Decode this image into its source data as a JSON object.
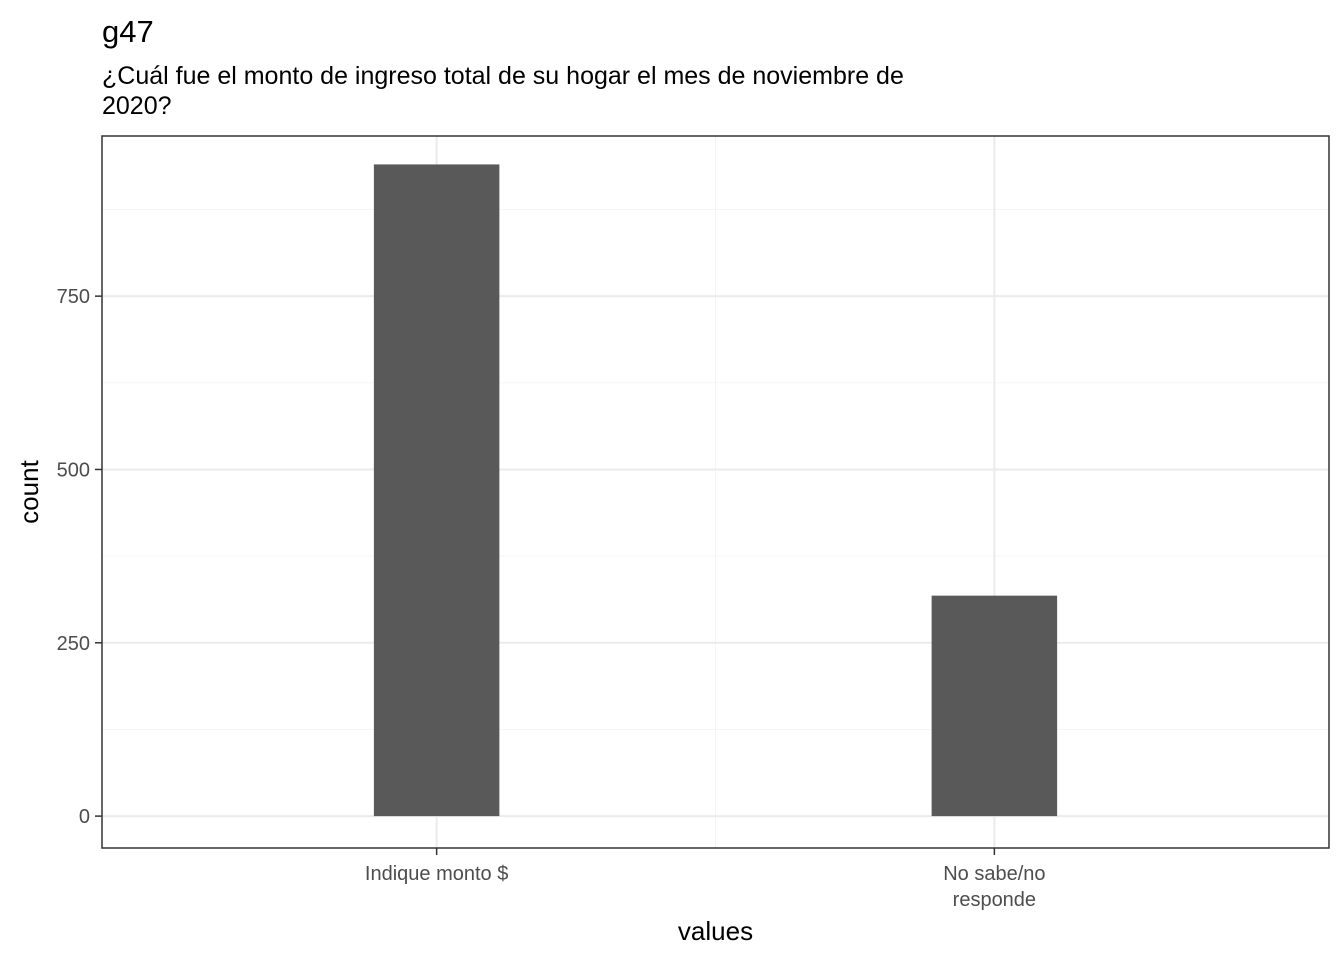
{
  "chart_data": {
    "type": "bar",
    "title": "g47",
    "subtitle_lines": [
      "¿Cuál fue el monto de ingreso total de su hogar el mes de noviembre de",
      "2020?"
    ],
    "xlabel": "values",
    "ylabel": "count",
    "categories": [
      [
        "Indique monto $"
      ],
      [
        "No sabe/no",
        "responde"
      ]
    ],
    "values": [
      940,
      318
    ],
    "ylim": [
      -46,
      981
    ],
    "y_ticks": [
      0,
      250,
      500,
      750
    ],
    "y_tick_labels": [
      "0",
      "250",
      "500",
      "750"
    ],
    "x_range": [
      0.4,
      2.6
    ],
    "grid": true,
    "bar_color": "#595959",
    "panel_border_color": "#333333",
    "grid_major_color": "#ebebeb",
    "grid_minor_color": "#f5f5f5"
  }
}
